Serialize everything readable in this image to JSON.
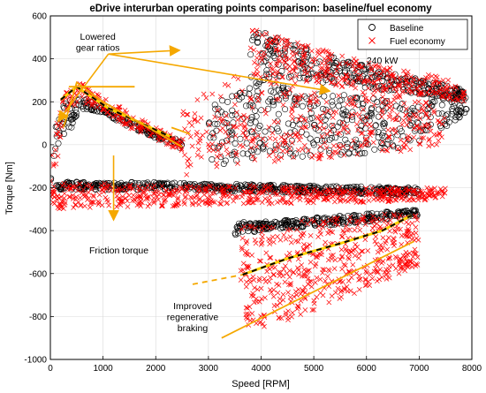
{
  "chart_data": {
    "type": "scatter",
    "title": "eDrive interurban operating points comparison: baseline/fuel economy",
    "xlabel": "Speed [RPM]",
    "ylabel": "Torque [Nm]",
    "xlim": [
      0,
      8000
    ],
    "ylim": [
      -1000,
      600
    ],
    "xticks": [
      0,
      1000,
      2000,
      3000,
      4000,
      5000,
      6000,
      7000,
      8000
    ],
    "yticks": [
      -1000,
      -800,
      -600,
      -400,
      -200,
      0,
      200,
      400,
      600
    ],
    "grid": true,
    "legend_position": "top-right",
    "series": [
      {
        "name": "Baseline",
        "marker": "circle",
        "color": "#000000",
        "regions": [
          {
            "shape": "band",
            "x": [
              0,
              100,
              200,
              300,
              400,
              500,
              600
            ],
            "y_low": [
              -200,
              -60,
              30,
              60,
              80,
              120,
              140
            ],
            "y_high": [
              -170,
              100,
              170,
              200,
              210,
              220,
              230
            ]
          },
          {
            "shape": "band",
            "x": [
              600,
              1000,
              1500,
              2000,
              2500
            ],
            "y_low": [
              160,
              150,
              80,
              30,
              -20
            ],
            "y_high": [
              220,
              180,
              120,
              60,
              20
            ]
          },
          {
            "shape": "band",
            "x": [
              100,
              2000,
              3000,
              4000,
              5000,
              6000,
              7000
            ],
            "y_low": [
              -210,
              -210,
              -215,
              -220,
              -225,
              -230,
              -240
            ],
            "y_high": [
              -170,
              -175,
              -180,
              -185,
              -190,
              -195,
              -200
            ]
          },
          {
            "shape": "band",
            "x": [
              3500,
              4000,
              5000,
              6000,
              7000
            ],
            "y_low": [
              -420,
              -400,
              -380,
              -360,
              -330
            ],
            "y_high": [
              -360,
              -360,
              -340,
              -320,
              -300
            ]
          },
          {
            "shape": "band",
            "x": [
              3800,
              4500,
              5500,
              6500,
              7500,
              7900
            ],
            "y_low": [
              300,
              300,
              280,
              250,
              220,
              200
            ],
            "y_high": [
              560,
              480,
              400,
              330,
              280,
              250
            ]
          },
          {
            "shape": "band",
            "x": [
              3000,
              4000,
              5000,
              6000,
              7000,
              7900
            ],
            "y_low": [
              -100,
              -80,
              -60,
              -40,
              0,
              150
            ],
            "y_high": [
              200,
              300,
              250,
              220,
              200,
              250
            ]
          }
        ]
      },
      {
        "name": "Fuel economy",
        "marker": "x",
        "color": "#ff0000",
        "regions": [
          {
            "shape": "band",
            "x": [
              0,
              300,
              600,
              1000,
              1500,
              2000,
              2500
            ],
            "y_low": [
              -260,
              150,
              200,
              150,
              80,
              20,
              -30
            ],
            "y_high": [
              50,
              250,
              290,
              220,
              150,
              80,
              20
            ]
          },
          {
            "shape": "band",
            "x": [
              0,
              1000,
              2000,
              3000,
              4000,
              5000,
              6000,
              7000,
              7500
            ],
            "y_low": [
              -300,
              -290,
              -290,
              -280,
              -280,
              -270,
              -270,
              -260,
              -250
            ],
            "y_high": [
              -180,
              -180,
              -190,
              -190,
              -190,
              -200,
              -200,
              -200,
              -200
            ]
          },
          {
            "shape": "band",
            "x": [
              3600,
              4000,
              5000,
              6000,
              7000
            ],
            "y_low": [
              -650,
              -620,
              -580,
              -520,
              -450
            ],
            "y_high": [
              -380,
              -370,
              -350,
              -330,
              -300
            ]
          },
          {
            "shape": "band",
            "x": [
              3700,
              4500,
              5500,
              6500,
              7000
            ],
            "y_low": [
              -870,
              -820,
              -720,
              -620,
              -560
            ],
            "y_high": [
              -620,
              -590,
              -560,
              -520,
              -480
            ]
          },
          {
            "shape": "band",
            "x": [
              3800,
              4500,
              5500,
              6500,
              7500,
              7900
            ],
            "y_low": [
              300,
              300,
              270,
              240,
              220,
              180
            ],
            "y_high": [
              550,
              490,
              420,
              360,
              310,
              260
            ]
          },
          {
            "shape": "band",
            "x": [
              2500,
              3500,
              4500,
              5500,
              6500,
              7500
            ],
            "y_low": [
              -150,
              -100,
              -80,
              -60,
              -40,
              0
            ],
            "y_high": [
              200,
              330,
              300,
              260,
              230,
              250
            ]
          }
        ]
      }
    ],
    "reference_lines": [
      {
        "style": "yellow-black-dashed",
        "points": [
          [
            200,
            210
          ],
          [
            500,
            270
          ],
          [
            1100,
            170
          ],
          [
            2300,
            35
          ]
        ]
      },
      {
        "style": "yellow-black-dashed",
        "points": [
          [
            3650,
            -605
          ],
          [
            4500,
            -530
          ],
          [
            5500,
            -460
          ],
          [
            6300,
            -400
          ],
          [
            6850,
            -330
          ]
        ]
      },
      {
        "style": "orange-dashed-extension",
        "points": [
          [
            2700,
            -650
          ],
          [
            3650,
            -605
          ]
        ]
      },
      {
        "style": "orange-solid",
        "points": [
          [
            3250,
            -900
          ],
          [
            6900,
            -450
          ]
        ]
      },
      {
        "style": "orange-solid",
        "points": [
          [
            250,
            80
          ],
          [
            500,
            290
          ],
          [
            1000,
            200
          ],
          [
            2500,
            -10
          ]
        ]
      },
      {
        "style": "orange-solid",
        "points": [
          [
            350,
            270
          ],
          [
            1600,
            270
          ]
        ]
      },
      {
        "style": "orange-solid",
        "points": [
          [
            2300,
            80
          ],
          [
            2650,
            50
          ]
        ]
      }
    ],
    "annotations": [
      {
        "text": "240 kW",
        "x": 6300,
        "y": 395
      },
      {
        "text": "Lowered\ngear ratios",
        "x": 900,
        "y": 480,
        "arrows_to": [
          [
            150,
            110
          ],
          [
            2450,
            440
          ],
          [
            5300,
            250
          ]
        ]
      },
      {
        "text": "Friction torque",
        "x": 1300,
        "y": -490,
        "arrow_from": [
          1200,
          -50
        ],
        "arrow_to": [
          1200,
          -350
        ]
      },
      {
        "text": "Improved\nregenerative\nbraking",
        "x": 2700,
        "y": -800
      }
    ]
  }
}
